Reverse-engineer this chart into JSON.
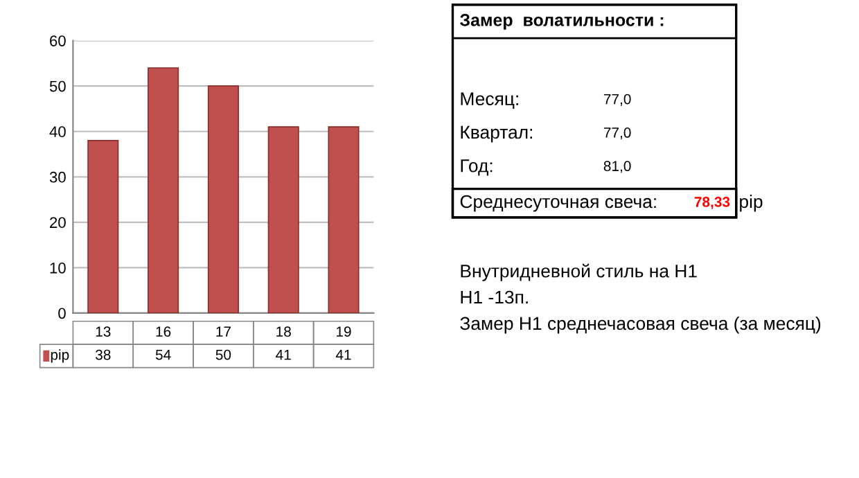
{
  "chart_data": {
    "type": "bar",
    "categories": [
      "13",
      "16",
      "17",
      "18",
      "19"
    ],
    "series": [
      {
        "name": "pip",
        "color": "#c0504d",
        "values": [
          38,
          54,
          50,
          41,
          41
        ]
      }
    ],
    "ylim": [
      0,
      60
    ],
    "yticks": [
      0,
      10,
      20,
      30,
      40,
      50,
      60
    ],
    "grid": "y",
    "data_labels": true,
    "legend": "bottom",
    "annotations": [
      "Замер  волатильности :",
      "Месяц:",
      "77,0",
      "Квартал:",
      "77,0",
      "Год:",
      "81,0",
      "Среднесуточная свеча:",
      "78,33",
      "pip",
      "Внутридневной стиль на H1",
      "H1 -13п.",
      "Замер H1 среднечасовая свеча (за месяц)"
    ]
  }
}
